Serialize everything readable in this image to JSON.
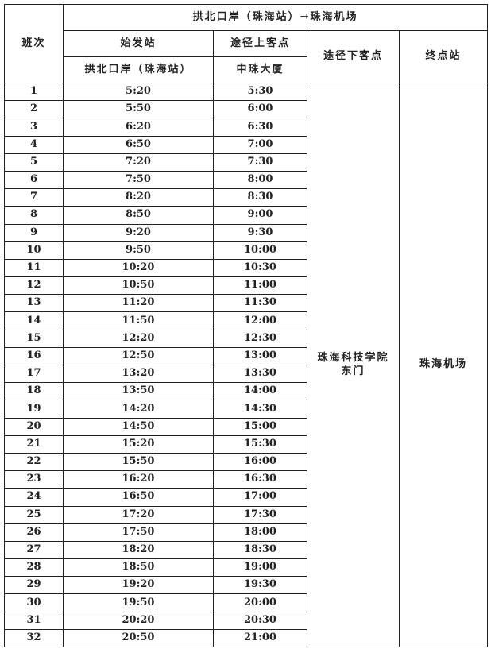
{
  "header": {
    "route_title": "拱北口岸（珠海站）→珠海机场",
    "col_trip": "班次",
    "col_origin": "始发站",
    "col_origin_name": "拱北口岸（珠海站）",
    "col_pickup": "途径上客点",
    "col_pickup_name": "中珠大厦",
    "col_dropoff": "途径下客点",
    "col_terminal": "终点站"
  },
  "dropoff_stop": "珠海科技学院东门",
  "terminal_stop": "珠海机场",
  "rows": [
    [
      "1",
      "5:20",
      "5:30"
    ],
    [
      "2",
      "5:50",
      "6:00"
    ],
    [
      "3",
      "6:20",
      "6:30"
    ],
    [
      "4",
      "6:50",
      "7:00"
    ],
    [
      "5",
      "7:20",
      "7:30"
    ],
    [
      "6",
      "7:50",
      "8:00"
    ],
    [
      "7",
      "8:20",
      "8:30"
    ],
    [
      "8",
      "8:50",
      "9:00"
    ],
    [
      "9",
      "9:20",
      "9:30"
    ],
    [
      "10",
      "9:50",
      "10:00"
    ],
    [
      "11",
      "10:20",
      "10:30"
    ],
    [
      "12",
      "10:50",
      "11:00"
    ],
    [
      "13",
      "11:20",
      "11:30"
    ],
    [
      "14",
      "11:50",
      "12:00"
    ],
    [
      "15",
      "12:20",
      "12:30"
    ],
    [
      "16",
      "12:50",
      "13:00"
    ],
    [
      "17",
      "13:20",
      "13:30"
    ],
    [
      "18",
      "13:50",
      "14:00"
    ],
    [
      "19",
      "14:20",
      "14:30"
    ],
    [
      "20",
      "14:50",
      "15:00"
    ],
    [
      "21",
      "15:20",
      "15:30"
    ],
    [
      "22",
      "15:50",
      "16:00"
    ],
    [
      "23",
      "16:20",
      "16:30"
    ],
    [
      "24",
      "16:50",
      "17:00"
    ],
    [
      "25",
      "17:20",
      "17:30"
    ],
    [
      "26",
      "17:50",
      "18:00"
    ],
    [
      "27",
      "18:20",
      "18:30"
    ],
    [
      "28",
      "18:50",
      "19:00"
    ],
    [
      "29",
      "19:20",
      "19:30"
    ],
    [
      "30",
      "19:50",
      "20:00"
    ],
    [
      "31",
      "20:20",
      "20:30"
    ],
    [
      "32",
      "20:50",
      "21:00"
    ]
  ]
}
